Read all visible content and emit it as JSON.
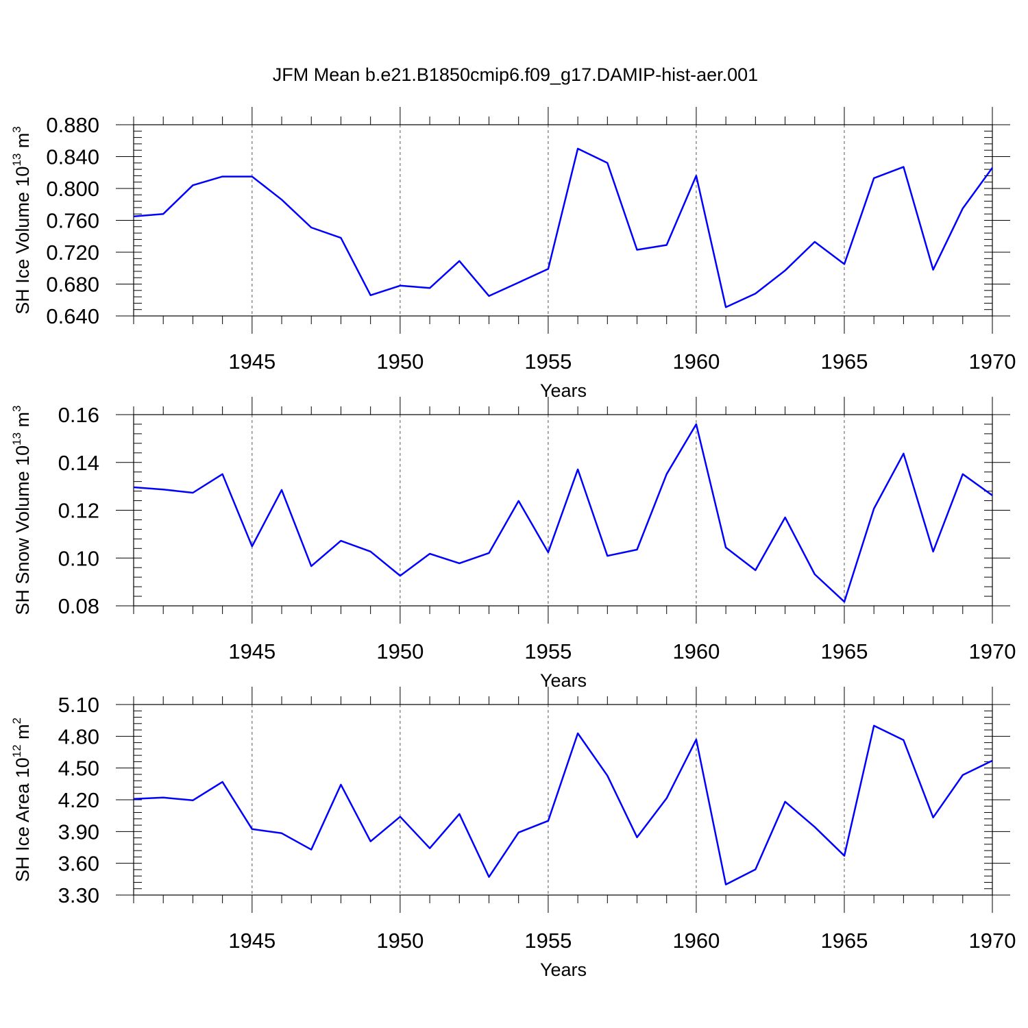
{
  "chart_data": [
    {
      "type": "line",
      "title": "JFM Mean b.e21.B1850cmip6.f09_g17.DAMIP-hist-aer.001",
      "xlabel": "Years",
      "ylabel": "SH Ice Volume 10",
      "ylabel_exp": "13",
      "ylabel_unit": " m",
      "ylabel_unit_exp": "3",
      "xlim": [
        1941,
        1970
      ],
      "ylim": [
        0.64,
        0.88
      ],
      "yticks": [
        0.64,
        0.68,
        0.72,
        0.76,
        0.8,
        0.84,
        0.88
      ],
      "ytick_labels": [
        "0.640",
        "0.680",
        "0.720",
        "0.760",
        "0.800",
        "0.840",
        "0.880"
      ],
      "yminor_step": 0.008,
      "xticks": [
        1945,
        1950,
        1955,
        1960,
        1965,
        1970
      ],
      "xtick_labels": [
        "1945",
        "1950",
        "1955",
        "1960",
        "1965",
        "1970"
      ],
      "grid": "vertical dashed at major x ticks",
      "series": [
        {
          "name": "SH Ice Volume",
          "color": "#0000ff",
          "x": [
            1941,
            1942,
            1943,
            1944,
            1945,
            1946,
            1947,
            1948,
            1949,
            1950,
            1951,
            1952,
            1953,
            1954,
            1955,
            1956,
            1957,
            1958,
            1959,
            1960,
            1961,
            1962,
            1963,
            1964,
            1965,
            1966,
            1967,
            1968,
            1969,
            1970
          ],
          "y": [
            0.765,
            0.768,
            0.804,
            0.815,
            0.815,
            0.786,
            0.751,
            0.738,
            0.666,
            0.678,
            0.675,
            0.709,
            0.665,
            0.682,
            0.699,
            0.85,
            0.832,
            0.723,
            0.729,
            0.816,
            0.651,
            0.668,
            0.697,
            0.733,
            0.705,
            0.813,
            0.827,
            0.698,
            0.775,
            0.826
          ]
        }
      ]
    },
    {
      "type": "line",
      "xlabel": "Years",
      "ylabel": "SH Snow Volume 10",
      "ylabel_exp": "13",
      "ylabel_unit": " m",
      "ylabel_unit_exp": "3",
      "xlim": [
        1941,
        1970
      ],
      "ylim": [
        0.08,
        0.16
      ],
      "yticks": [
        0.08,
        0.1,
        0.12,
        0.14,
        0.16
      ],
      "ytick_labels": [
        "0.08",
        "0.10",
        "0.12",
        "0.14",
        "0.16"
      ],
      "yminor_step": 0.004,
      "xticks": [
        1945,
        1950,
        1955,
        1960,
        1965,
        1970
      ],
      "xtick_labels": [
        "1945",
        "1950",
        "1955",
        "1960",
        "1965",
        "1970"
      ],
      "grid": "vertical dashed at major x ticks",
      "series": [
        {
          "name": "SH Snow Volume",
          "color": "#0000ff",
          "x": [
            1941,
            1942,
            1943,
            1944,
            1945,
            1946,
            1947,
            1948,
            1949,
            1950,
            1951,
            1952,
            1953,
            1954,
            1955,
            1956,
            1957,
            1958,
            1959,
            1960,
            1961,
            1962,
            1963,
            1964,
            1965,
            1966,
            1967,
            1968,
            1969,
            1970
          ],
          "y": [
            0.1296,
            0.1287,
            0.1273,
            0.1351,
            0.1049,
            0.1285,
            0.0966,
            0.1072,
            0.1027,
            0.0926,
            0.1018,
            0.0978,
            0.1021,
            0.1239,
            0.1024,
            0.1371,
            0.1009,
            0.1035,
            0.1351,
            0.156,
            0.1044,
            0.0949,
            0.117,
            0.0932,
            0.0817,
            0.1207,
            0.1437,
            0.1027,
            0.1351,
            0.1262
          ]
        }
      ]
    },
    {
      "type": "line",
      "xlabel": "Years",
      "ylabel": "SH Ice Area 10",
      "ylabel_exp": "12",
      "ylabel_unit": " m",
      "ylabel_unit_exp": "2",
      "xlim": [
        1941,
        1970
      ],
      "ylim": [
        3.3,
        5.1
      ],
      "yticks": [
        3.3,
        3.6,
        3.9,
        4.2,
        4.5,
        4.8,
        5.1
      ],
      "ytick_labels": [
        "3.30",
        "3.60",
        "3.90",
        "4.20",
        "4.50",
        "4.80",
        "5.10"
      ],
      "yminor_step": 0.06,
      "xticks": [
        1945,
        1950,
        1955,
        1960,
        1965,
        1970
      ],
      "xtick_labels": [
        "1945",
        "1950",
        "1955",
        "1960",
        "1965",
        "1970"
      ],
      "grid": "vertical dashed at major x ticks",
      "series": [
        {
          "name": "SH Ice Area",
          "color": "#0000ff",
          "x": [
            1941,
            1942,
            1943,
            1944,
            1945,
            1946,
            1947,
            1948,
            1949,
            1950,
            1951,
            1952,
            1953,
            1954,
            1955,
            1956,
            1957,
            1958,
            1959,
            1960,
            1961,
            1962,
            1963,
            1964,
            1965,
            1966,
            1967,
            1968,
            1969,
            1970
          ],
          "y": [
            4.208,
            4.221,
            4.195,
            4.369,
            3.923,
            3.884,
            3.729,
            4.343,
            3.807,
            4.04,
            3.742,
            4.066,
            3.471,
            3.891,
            4.001,
            4.828,
            4.428,
            3.846,
            4.214,
            4.77,
            3.4,
            3.542,
            4.182,
            3.943,
            3.671,
            4.9,
            4.764,
            4.033,
            4.434,
            4.57
          ]
        }
      ]
    }
  ]
}
